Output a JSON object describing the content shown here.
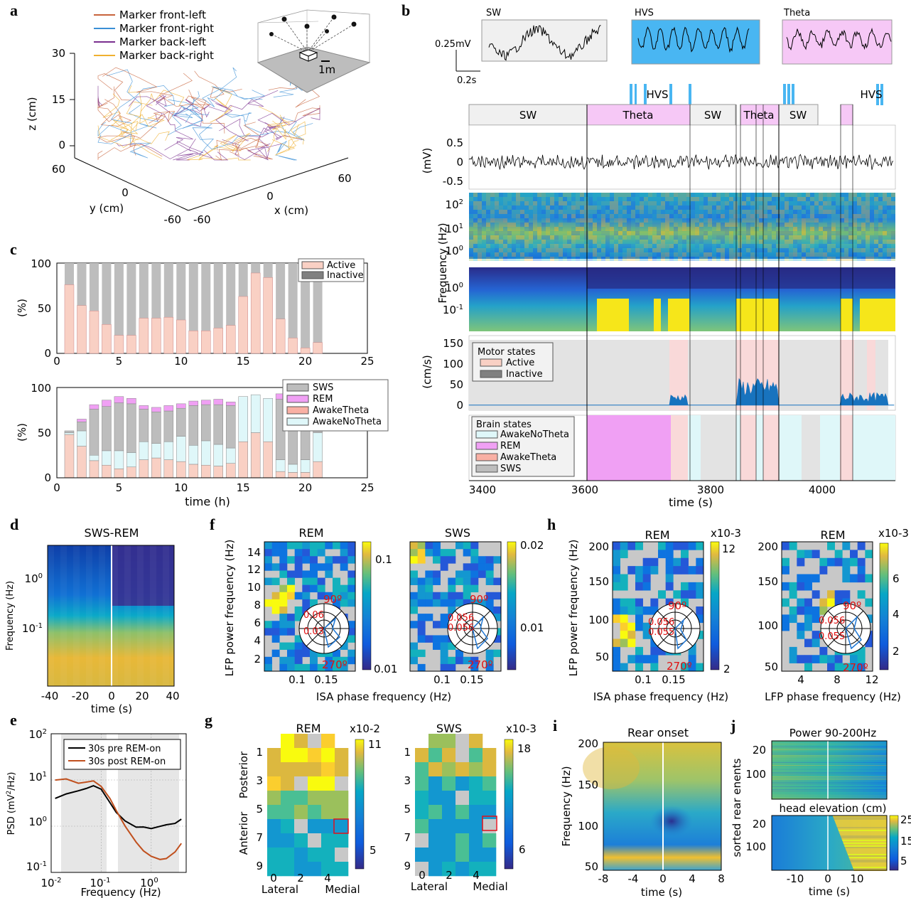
{
  "colors": {
    "parula_dark": "#352a87",
    "parula_blue": "#0d6edb",
    "parula_cyan": "#12beb9",
    "parula_yellow": "#f9fb0e",
    "active": "#f9d0c4",
    "inactive": "#808080",
    "theta": "#f6c8f6",
    "hvs": "#49b6f2",
    "sw_box": "#f0f0f0",
    "wake_no_theta": "#dff7f9",
    "rem": "#f0a0f4",
    "sws": "#bdbdbd",
    "pre_rem": "#000000",
    "post_rem": "#c0501e",
    "roi_box": "#e0101a"
  },
  "panel_letters": [
    "a",
    "b",
    "c",
    "d",
    "e",
    "f",
    "g",
    "h",
    "i",
    "j"
  ],
  "panel_a": {
    "legend": [
      "Marker front-left",
      "Marker front-right",
      "Marker back-left",
      "Marker back-right"
    ],
    "legend_colors": [
      "#c8643c",
      "#3a8fd6",
      "#7a2f8f",
      "#f0b030"
    ],
    "z_ticks": [
      "30",
      "15",
      "0"
    ],
    "z_label": "z (cm)",
    "y_ticks": [
      "60",
      "0",
      "-60"
    ],
    "y_label": "y (cm)",
    "x_ticks": [
      "-60",
      "0",
      "60"
    ],
    "x_label": "x (cm)",
    "inset_scale": "1m"
  },
  "panel_b": {
    "traces": [
      "SW",
      "HVS",
      "Theta"
    ],
    "scale_v": "0.25mV",
    "scale_t": "0.2s",
    "hvs_label": "HVS",
    "state_boxes": [
      "SW",
      "Theta",
      "SW",
      "Theta",
      "SW"
    ],
    "lfp_yticks": [
      "0.5",
      "0",
      "-0.5"
    ],
    "lfp_ylabel": "(mV)",
    "spec_ylabel": "Frequency (Hz)",
    "spec1_ticks": [
      "10^2",
      "10^1",
      "10^0"
    ],
    "spec2_ticks": [
      "10^0",
      "10^-1"
    ],
    "speed_yticks": [
      "150",
      "100",
      "50",
      "0"
    ],
    "speed_ylabel": "(cm/s)",
    "motor_title": "Motor states",
    "motor_items": [
      "Active",
      "Inactive"
    ],
    "brain_title": "Brain states",
    "brain_items": [
      "AwakeNoTheta",
      "REM",
      "AwakeTheta",
      "SWS"
    ],
    "xticks": [
      "3400",
      "3600",
      "3800",
      "4000"
    ],
    "xlabel": "time (s)"
  },
  "panel_c": {
    "top_legend": [
      "Active",
      "Inactive"
    ],
    "bottom_legend": [
      "SWS",
      "REM",
      "AwakeTheta",
      "AwakeNoTheta"
    ],
    "yticks": [
      "100",
      "50",
      "0"
    ],
    "ylabel": "(%)",
    "xticks": [
      "0",
      "5",
      "10",
      "15",
      "20",
      "25"
    ],
    "xlabel": "time (h)"
  },
  "panel_d": {
    "title": "SWS-REM",
    "ylabel": "Frequency (Hz)",
    "yticks": [
      "10^0",
      "10^-1"
    ],
    "xticks": [
      "-40",
      "-20",
      "0",
      "20",
      "40"
    ],
    "xlabel": "time (s)"
  },
  "panel_e": {
    "legend": [
      "30s pre REM-on",
      "30s post REM-on"
    ],
    "ylabel": "PSD (mV^2/Hz)",
    "yticks": [
      "10^2",
      "10^1",
      "10^0",
      "10^-1"
    ],
    "xticks": [
      "10^-2",
      "10^-1",
      "10^0"
    ],
    "xlabel": "Frequency (Hz)"
  },
  "panel_f": {
    "titles": [
      "REM",
      "SWS"
    ],
    "ylabel": "LFP power frequency (Hz)",
    "yticks": [
      "14",
      "10",
      "6",
      "2"
    ],
    "yticks_b": [
      "14",
      "10",
      "6",
      "2"
    ],
    "ylabels_mid": [
      "12",
      "8",
      "4"
    ],
    "xticks": [
      "0.1",
      "0.15"
    ],
    "xlabel": "ISA phase frequency (Hz)",
    "cbar1": [
      "0.1",
      "0.01"
    ],
    "cbar2": [
      "0.02",
      "0.01"
    ],
    "polar1": [
      "0.06",
      "0.03"
    ],
    "polar2": [
      "0.056",
      "0.056"
    ],
    "deg90": "90º",
    "deg270": "270º"
  },
  "panel_g": {
    "titles": [
      "REM",
      "SWS"
    ],
    "mult1": "x10-2",
    "mult2": "x10-3",
    "cbar1": [
      "11",
      "5"
    ],
    "cbar2": [
      "18",
      "6"
    ],
    "yticks": [
      "1",
      "3",
      "5",
      "7",
      "9"
    ],
    "xticks": [
      "0",
      "2",
      "4"
    ],
    "xlabels": [
      "Lateral",
      "Medial"
    ],
    "ylabels": [
      "Posterior",
      "Anterior"
    ]
  },
  "panel_h": {
    "titles": [
      "REM",
      "REM"
    ],
    "ylabel": "LFP power frequency (Hz)",
    "yticks": [
      "200",
      "150",
      "100",
      "50"
    ],
    "mult": "x10-3",
    "cbar1": [
      "12",
      "2"
    ],
    "cbar2": [
      "6",
      "4",
      "2"
    ],
    "xticks1": [
      "0.1",
      "0.15"
    ],
    "xlabel1": "ISA phase frequency (Hz)",
    "xticks2": [
      "4",
      "8",
      "12"
    ],
    "xlabel2": "LFP phase frequency (Hz)",
    "polar1": [
      "0.056",
      "0.055"
    ],
    "polar2": [
      "0.056",
      "0.055"
    ],
    "deg90": "90º",
    "deg270": "270º"
  },
  "panel_i": {
    "title": "Rear onset",
    "ylabel": "Frequency (Hz)",
    "yticks": [
      "200",
      "150",
      "100",
      "50"
    ],
    "xticks": [
      "-8",
      "-4",
      "0",
      "4",
      "8"
    ],
    "xlabel": "time (s)"
  },
  "panel_j": {
    "title1": "Power 90-200Hz",
    "title2": "head elevation (cm)",
    "ylabel": "sorted rear enents",
    "yticks": [
      "20",
      "100"
    ],
    "xticks": [
      "-10",
      "0",
      "10"
    ],
    "xlabel": "time (s)",
    "cbar": [
      "25",
      "15",
      "5"
    ]
  },
  "chart_data": [
    {
      "type": "bar",
      "panel": "c-top",
      "ylabel": "(%)",
      "xlabel": "",
      "ylim": [
        0,
        100
      ],
      "xlim": [
        0,
        25
      ],
      "x": [
        1,
        2,
        3,
        4,
        5,
        6,
        7,
        8,
        9,
        10,
        11,
        12,
        13,
        14,
        15,
        16,
        17,
        18,
        19,
        20,
        21
      ],
      "series": [
        {
          "name": "Active",
          "values": [
            76,
            53,
            47,
            32,
            20,
            20,
            39,
            39,
            40,
            37,
            25,
            25,
            28,
            31,
            63,
            89,
            84,
            38,
            17,
            6,
            12
          ]
        },
        {
          "name": "Inactive",
          "values": [
            24,
            47,
            53,
            68,
            80,
            80,
            61,
            61,
            60,
            63,
            75,
            75,
            72,
            69,
            37,
            11,
            16,
            62,
            83,
            94,
            88
          ]
        }
      ]
    },
    {
      "type": "bar",
      "panel": "c-bottom",
      "ylabel": "(%)",
      "xlabel": "time (h)",
      "ylim": [
        0,
        100
      ],
      "xlim": [
        0,
        25
      ],
      "x": [
        1,
        2,
        3,
        4,
        5,
        6,
        7,
        8,
        9,
        10,
        11,
        12,
        13,
        14,
        15,
        16,
        17,
        18,
        19,
        20,
        21
      ],
      "series": [
        {
          "name": "AwakeNoTheta",
          "values": [
            50,
            52,
            25,
            30,
            30,
            28,
            40,
            38,
            40,
            46,
            36,
            41,
            37,
            33,
            90,
            92,
            88,
            20,
            15,
            20,
            50
          ]
        },
        {
          "name": "AwakeTheta",
          "values": [
            48,
            35,
            19,
            14,
            10,
            12,
            20,
            22,
            20,
            18,
            15,
            14,
            13,
            16,
            40,
            50,
            40,
            7,
            6,
            6,
            18
          ]
        },
        {
          "name": "REM",
          "values": [
            0,
            3,
            5,
            7,
            7,
            6,
            4,
            5,
            6,
            5,
            5,
            5,
            6,
            4,
            0,
            0,
            0,
            6,
            8,
            8,
            0
          ]
        },
        {
          "name": "SWS",
          "values": [
            2,
            10,
            51,
            49,
            53,
            54,
            36,
            35,
            34,
            31,
            44,
            40,
            44,
            47,
            0,
            0,
            0,
            67,
            71,
            66,
            32
          ]
        }
      ]
    },
    {
      "type": "line",
      "panel": "e",
      "xlabel": "Frequency (Hz)",
      "ylabel": "PSD (mV^2/Hz)",
      "xscale": "log",
      "yscale": "log",
      "xlim": [
        0.01,
        5
      ],
      "ylim": [
        0.1,
        100
      ],
      "x": [
        0.012,
        0.02,
        0.035,
        0.05,
        0.07,
        0.1,
        0.15,
        0.2,
        0.3,
        0.5,
        0.7,
        1,
        1.5,
        2,
        3,
        4
      ],
      "series": [
        {
          "name": "30s pre REM-on",
          "values": [
            4.0,
            5.0,
            5.8,
            6.5,
            7.5,
            6.3,
            3.2,
            2.0,
            1.3,
            0.95,
            0.95,
            0.9,
            1.0,
            1.05,
            1.15,
            1.4
          ]
        },
        {
          "name": "30s post REM-on",
          "values": [
            10.0,
            10.5,
            8.5,
            9.0,
            9.5,
            7.2,
            4.0,
            2.2,
            1.0,
            0.45,
            0.3,
            0.22,
            0.19,
            0.2,
            0.28,
            0.42
          ]
        }
      ]
    }
  ]
}
